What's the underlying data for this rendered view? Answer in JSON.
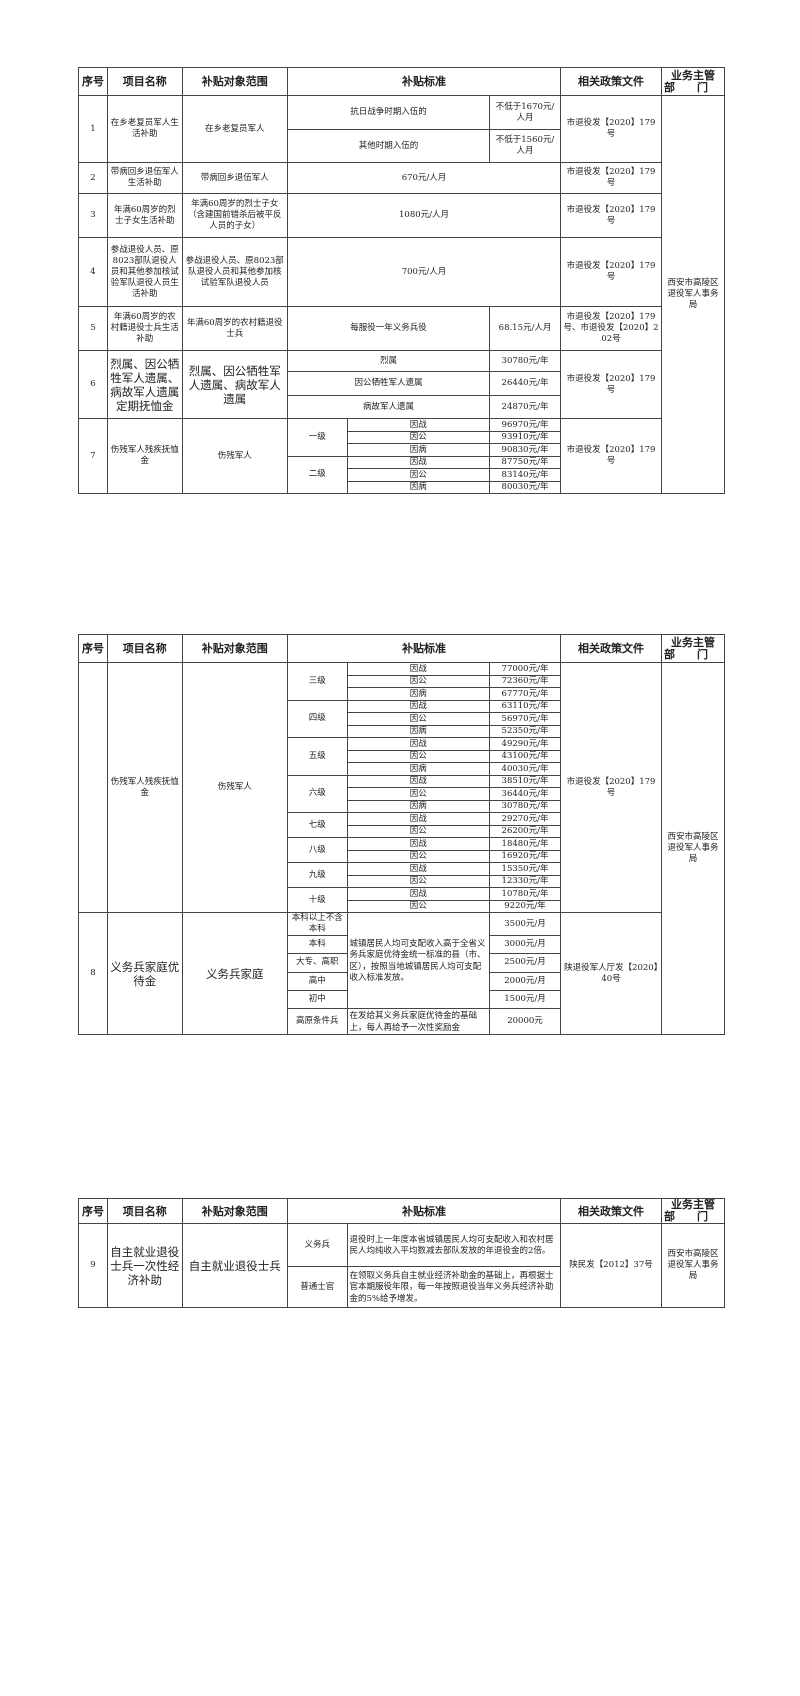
{
  "header": {
    "seq": "序号",
    "name": "项目名称",
    "scope": "补贴对象范围",
    "standard": "补贴标准",
    "policy": "相关政策文件",
    "dept_line1": "业务主管",
    "dept_line2": "部　　门"
  },
  "tables": [
    {
      "dept": "西安市高陵区退役军人事务局",
      "rows": [
        {
          "seq": "1",
          "name": "在乡老复员军人生活补助",
          "scope": "在乡老复员军人",
          "standards": [
            {
              "label": "抗日战争时期入伍的",
              "value": "不低于1670元/人月"
            },
            {
              "label": "其他时期入伍的",
              "value": "不低于1560元/人月"
            }
          ],
          "policy": "市退役发【2020】179号"
        },
        {
          "seq": "2",
          "name": "带病回乡退伍军人生活补助",
          "scope": "带病回乡退伍军人",
          "single": "670元/人月",
          "policy": "市退役发【2020】179号"
        },
        {
          "seq": "3",
          "name": "年满60周岁的烈士子女生活补助",
          "scope": "年满60周岁的烈士子女（含建国前错杀后被平反人员的子女）",
          "single": "1080元/人月",
          "policy": "市退役发【2020】179号"
        },
        {
          "seq": "4",
          "name": "参战退役人员、原8023部队退役人员和其他参加核试验军队退役人员生活补助",
          "scope": "参战退役人员、原8023部队退役人员和其他参加核试验军队退役人员",
          "single": "700元/人月",
          "policy": "市退役发【2020】179号"
        },
        {
          "seq": "5",
          "name": "年满60周岁的农村籍退役士兵生活补助",
          "scope": "年满60周岁的农村籍退役士兵",
          "standards": [
            {
              "label": "每服役一年义务兵役",
              "value": "68.15元/人月"
            }
          ],
          "policy": "市退役发【2020】179号、市退役发【2020】202号"
        },
        {
          "seq": "6",
          "name": "烈属、因公牺牲军人遗属、病故军人遗属定期抚恤金",
          "scope": "烈属、因公牺牲军人遗属、病故军人遗属",
          "big": true,
          "standards": [
            {
              "label": "烈属",
              "value": "30780元/年"
            },
            {
              "label": "因公牺牲军人遗属",
              "value": "26440元/年"
            },
            {
              "label": "病故军人遗属",
              "value": "24870元/年"
            }
          ],
          "policy": "市退役发【2020】179号"
        },
        {
          "seq": "7",
          "name": "伤残军人残疾抚恤金",
          "scope": "伤残军人",
          "levels": [
            {
              "level": "一级",
              "items": [
                {
                  "type": "因战",
                  "value": "96970元/年"
                },
                {
                  "type": "因公",
                  "value": "93910元/年"
                },
                {
                  "type": "因病",
                  "value": "90830元/年"
                }
              ]
            },
            {
              "level": "二级",
              "items": [
                {
                  "type": "因战",
                  "value": "87750元/年"
                },
                {
                  "type": "因公",
                  "value": "83140元/年"
                },
                {
                  "type": "因病",
                  "value": "80030元/年"
                }
              ]
            }
          ],
          "policy": "市退役发【2020】179号"
        }
      ]
    },
    {
      "dept": "西安市高陵区退役军人事务局",
      "rows": [
        {
          "seq": "",
          "name": "伤残军人残疾抚恤金",
          "scope": "伤残军人",
          "levels": [
            {
              "level": "三级",
              "items": [
                {
                  "type": "因战",
                  "value": "77000元/年"
                },
                {
                  "type": "因公",
                  "value": "72360元/年"
                },
                {
                  "type": "因病",
                  "value": "67770元/年"
                }
              ]
            },
            {
              "level": "四级",
              "items": [
                {
                  "type": "因战",
                  "value": "63110元/年"
                },
                {
                  "type": "因公",
                  "value": "56970元/年"
                },
                {
                  "type": "因病",
                  "value": "52350元/年"
                }
              ]
            },
            {
              "level": "五级",
              "items": [
                {
                  "type": "因战",
                  "value": "49290元/年"
                },
                {
                  "type": "因公",
                  "value": "43100元/年"
                },
                {
                  "type": "因病",
                  "value": "40030元/年"
                }
              ]
            },
            {
              "level": "六级",
              "items": [
                {
                  "type": "因战",
                  "value": "38510元/年"
                },
                {
                  "type": "因公",
                  "value": "36440元/年"
                },
                {
                  "type": "因病",
                  "value": "30780元/年"
                }
              ]
            },
            {
              "level": "七级",
              "items": [
                {
                  "type": "因战",
                  "value": "29270元/年"
                },
                {
                  "type": "因公",
                  "value": "26200元/年"
                }
              ]
            },
            {
              "level": "八级",
              "items": [
                {
                  "type": "因战",
                  "value": "18480元/年"
                },
                {
                  "type": "因公",
                  "value": "16920元/年"
                }
              ]
            },
            {
              "level": "九级",
              "items": [
                {
                  "type": "因战",
                  "value": "15350元/年"
                },
                {
                  "type": "因公",
                  "value": "12330元/年"
                }
              ]
            },
            {
              "level": "十级",
              "items": [
                {
                  "type": "因战",
                  "value": "10780元/年"
                },
                {
                  "type": "因公",
                  "value": "9220元/年"
                }
              ]
            }
          ],
          "policy": "市退役发【2020】179号"
        },
        {
          "seq": "8",
          "name": "义务兵家庭优待金",
          "scope": "义务兵家庭",
          "big": true,
          "tiers": [
            {
              "level": "本科以上不含本科",
              "value": "3500元/月"
            },
            {
              "level": "本科",
              "value": "3000元/月"
            },
            {
              "level": "大专、高职",
              "value": "2500元/月"
            },
            {
              "level": "高中",
              "value": "2000元/月"
            },
            {
              "level": "初中",
              "value": "1500元/月"
            }
          ],
          "tier_desc": "城镇居民人均可支配收入高于全省义务兵家庭优待金统一标准的县（市、区），按照当地城镇居民人均可支配收入标准发放。",
          "plateau": {
            "level": "高原条件兵",
            "desc": "在发给其义务兵家庭优待金的基础上，每人再给予一次性奖励金",
            "value": "20000元"
          },
          "policy": "陕退役军人厅发【2020】40号"
        }
      ]
    },
    {
      "dept": "西安市高陵区退役军人事务局",
      "rows": [
        {
          "seq": "9",
          "name": "自主就业退役士兵一次性经济补助",
          "scope": "自主就业退役士兵",
          "big": true,
          "descs": [
            {
              "level": "义务兵",
              "desc": "退役时上一年度本省城镇居民人均可支配收入和农村居民人均纯收入平均数减去部队发放的年退役金的2倍。"
            },
            {
              "level": "普通士官",
              "desc": "在领取义务兵自主就业经济补助金的基础上，再根据士官本期服役年限，每一年按照退役当年义务兵经济补助金的5%给予增发。"
            }
          ],
          "policy": "陕民发【2012】37号"
        }
      ]
    }
  ]
}
